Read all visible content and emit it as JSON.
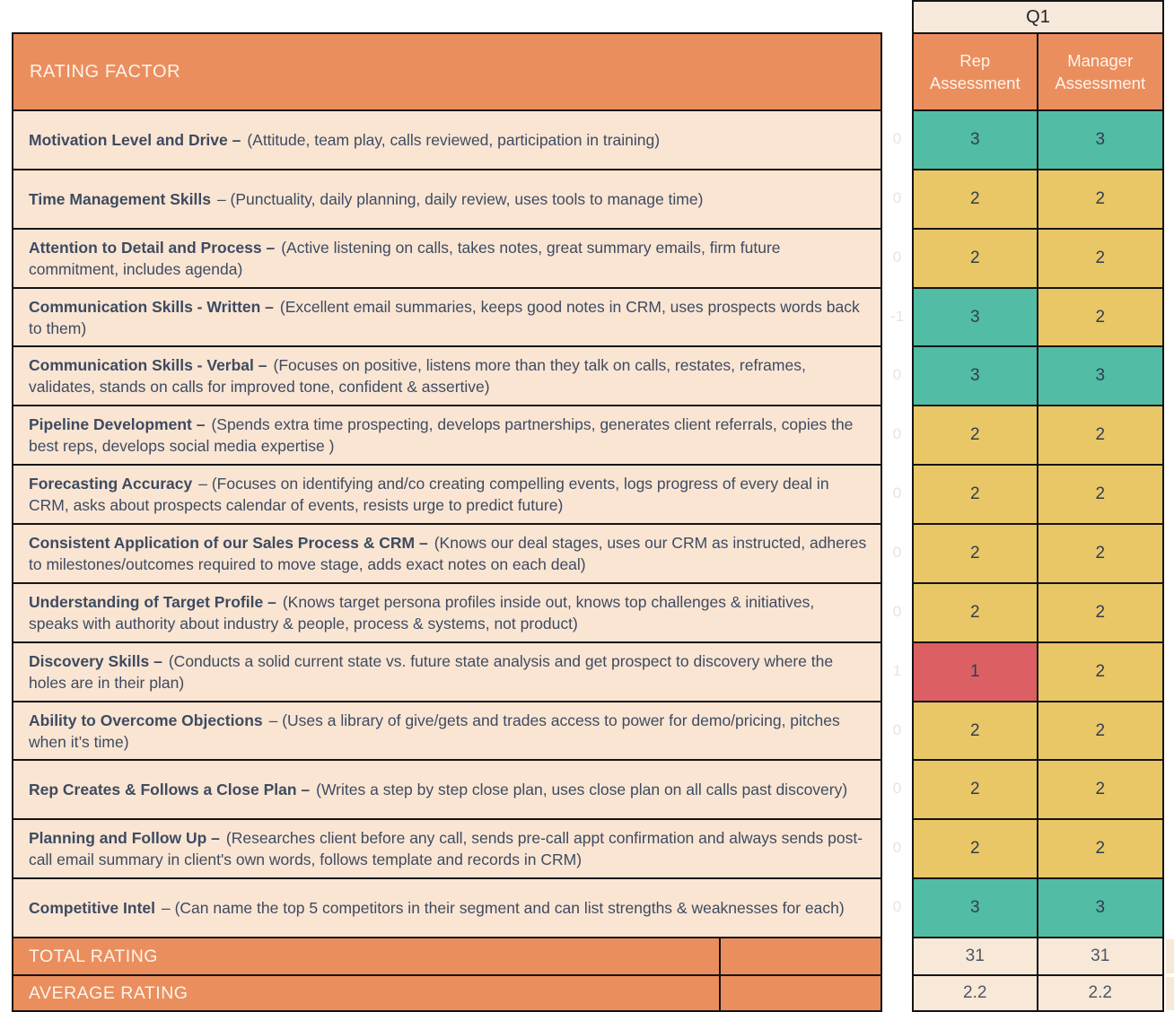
{
  "main_table": {
    "header": "RATING FACTOR",
    "total_label": "TOTAL RATING",
    "average_label": "AVERAGE RATING"
  },
  "q1_panel": {
    "quarter_label": "Q1",
    "rep_column_label": "Rep Assessment",
    "manager_column_label": "Manager Assessment",
    "rep_total": "31",
    "manager_total": "31",
    "rep_average": "2.2",
    "manager_average": "2.2"
  },
  "rows": [
    {
      "title": "Motivation Level and Drive –",
      "description": "(Attitude, team play, calls reviewed, participation in training)",
      "diff": "0",
      "rep": "3",
      "manager": "3"
    },
    {
      "title": "Time Management Skills",
      "description": "– (Punctuality, daily planning, daily review, uses tools to manage time)",
      "diff": "0",
      "rep": "2",
      "manager": "2"
    },
    {
      "title": "Attention to Detail and Process –",
      "description": "(Active listening on calls, takes notes, great summary emails, firm future commitment, includes agenda)",
      "diff": "0",
      "rep": "2",
      "manager": "2"
    },
    {
      "title": "Communication Skills - Written –",
      "description": "(Excellent email summaries, keeps good notes in CRM, uses prospects words back to them)",
      "diff": "-1",
      "rep": "3",
      "manager": "2"
    },
    {
      "title": "Communication Skills - Verbal –",
      "description": "(Focuses on positive, listens more than they talk on calls, restates, reframes, validates, stands on calls for improved tone, confident & assertive)",
      "diff": "0",
      "rep": "3",
      "manager": "3"
    },
    {
      "title": "Pipeline Development –",
      "description": "(Spends extra time prospecting, develops partnerships, generates client referrals, copies the best reps, develops social media expertise )",
      "diff": "0",
      "rep": "2",
      "manager": "2"
    },
    {
      "title": "Forecasting Accuracy",
      "description": "– (Focuses on identifying and/co creating compelling events, logs progress of every deal in CRM, asks about prospects calendar of events, resists urge to predict future)",
      "diff": "0",
      "rep": "2",
      "manager": "2"
    },
    {
      "title": "Consistent Application of our Sales Process & CRM –",
      "description": "(Knows our deal stages, uses our CRM as instructed, adheres to milestones/outcomes required to move stage, adds exact notes on each deal)",
      "diff": "0",
      "rep": "2",
      "manager": "2"
    },
    {
      "title": "Understanding of Target Profile –",
      "description": "(Knows target persona profiles inside out, knows top challenges & initiatives, speaks with authority about industry & people, process & systems, not product)",
      "diff": "0",
      "rep": "2",
      "manager": "2"
    },
    {
      "title": "Discovery Skills –",
      "description": "(Conducts a solid current state vs. future state analysis and get prospect to discovery where the holes are in their plan)",
      "diff": "1",
      "rep": "1",
      "manager": "2"
    },
    {
      "title": "Ability to Overcome Objections",
      "description": "– (Uses a library of give/gets and trades access to power for demo/pricing, pitches when it’s time)",
      "diff": "0",
      "rep": "2",
      "manager": "2"
    },
    {
      "title": "Rep Creates & Follows a Close Plan –",
      "description": "(Writes a step by step close plan, uses close plan on all calls past discovery)",
      "diff": "0",
      "rep": "2",
      "manager": "2"
    },
    {
      "title": "Planning and Follow Up –",
      "description": "(Researches client before any call, sends pre-call appt confirmation and always sends post-call email summary in client's own words, follows template and records in CRM)",
      "diff": "0",
      "rep": "2",
      "manager": "2"
    },
    {
      "title": "Competitive Intel",
      "description": "– (Can name the top 5 competitors in their segment and can list strengths & weaknesses for each)",
      "diff": "0",
      "rep": "3",
      "manager": "3"
    }
  ],
  "colors": {
    "score_3": "#52BCA5",
    "score_2": "#E9C767",
    "score_1": "#DB5F63",
    "header_orange": "#EB8E5D",
    "row_cream": "#FAE5D3",
    "panel_cream": "#F6E8DA",
    "summary_cream": "#F8E8D8",
    "border_black": "#141414",
    "text_navy": "#3D4B61",
    "diff_gray": "#e4e4e4"
  }
}
